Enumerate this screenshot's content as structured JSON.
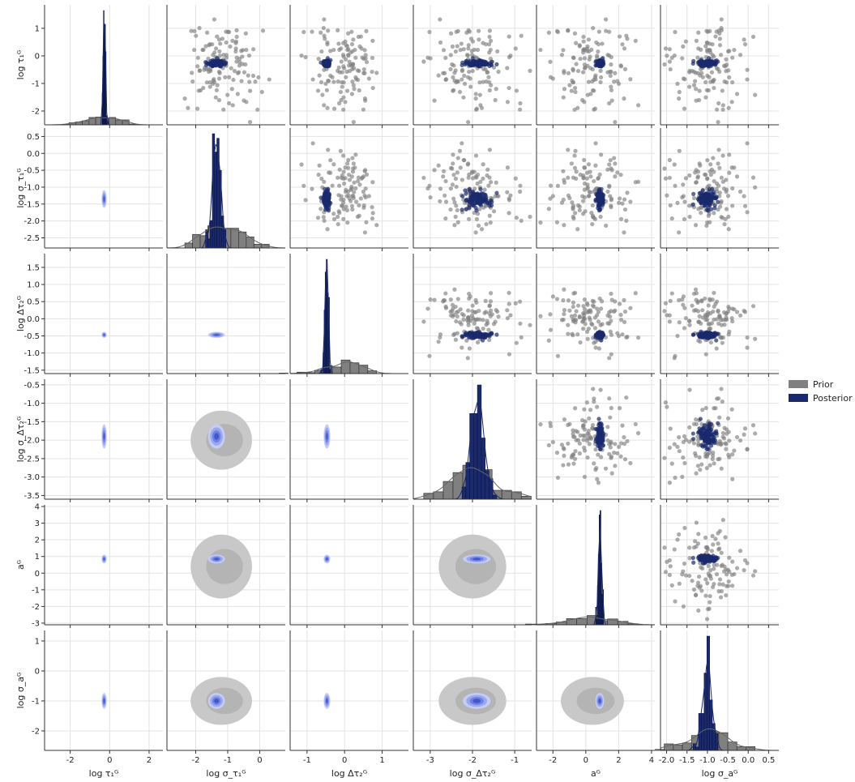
{
  "chart_data": {
    "type": "pairplot",
    "legend": {
      "placement": "right",
      "entries": [
        {
          "name": "Prior",
          "color": "#808080"
        },
        {
          "name": "Posterior",
          "color": "#1a2a6c"
        }
      ]
    },
    "upper_type": "scatter",
    "lower_type": "kde",
    "diag_type": "histogram+kde",
    "grid": true,
    "variables": [
      {
        "label": "log τ₁ᴳ",
        "range": [
          -3.3,
          2.7
        ],
        "prior_mean": -0.3,
        "prior_sd": 0.8,
        "post_mean": -0.28,
        "post_sd": 0.06,
        "ticks": [
          "-2",
          "0",
          "2"
        ],
        "tick_values": [
          -2,
          0,
          2
        ],
        "y_ticks": [
          "-2",
          "-1",
          "0",
          "1"
        ],
        "y_tick_values": [
          -2,
          -1,
          0,
          1
        ],
        "y_range": [
          -2.5,
          1.85
        ]
      },
      {
        "label": "log σ_τ₁ᴳ",
        "range": [
          -2.9,
          0.8
        ],
        "prior_mean": -1.2,
        "prior_sd": 0.6,
        "post_mean": -1.35,
        "post_sd": 0.12,
        "ticks": [
          "-2",
          "-1",
          "0"
        ],
        "tick_values": [
          -2,
          -1,
          0
        ],
        "y_ticks": [
          "-2.5",
          "-2.0",
          "-1.5",
          "-1.0",
          "-0.5",
          "0.0",
          "0.5"
        ],
        "y_tick_values": [
          -2.5,
          -2.0,
          -1.5,
          -1.0,
          -0.5,
          0.0,
          0.5
        ],
        "y_range": [
          -2.8,
          0.75
        ]
      },
      {
        "label": "log Δτ₂ᴳ",
        "range": [
          -1.45,
          1.7
        ],
        "prior_mean": 0.0,
        "prior_sd": 0.5,
        "post_mean": -0.47,
        "post_sd": 0.04,
        "ticks": [
          "-1",
          "0",
          "1"
        ],
        "tick_values": [
          -1,
          0,
          1
        ],
        "y_ticks": [
          "-1.5",
          "-1.0",
          "-0.5",
          "0.0",
          "0.5",
          "1.0",
          "1.5"
        ],
        "y_tick_values": [
          -1.5,
          -1.0,
          -0.5,
          0.0,
          0.5,
          1.0,
          1.5
        ],
        "y_range": [
          -1.6,
          1.9
        ]
      },
      {
        "label": "log σ_Δτ₂ᴳ",
        "range": [
          -3.4,
          -0.6
        ],
        "prior_mean": -2.0,
        "prior_sd": 0.5,
        "post_mean": -1.9,
        "post_sd": 0.15,
        "ticks": [
          "-3",
          "-2",
          "-1"
        ],
        "tick_values": [
          -3,
          -2,
          -1
        ],
        "y_ticks": [
          "-3.5",
          "-3.0",
          "-2.5",
          "-2.0",
          "-1.5",
          "-1.0",
          "-0.5"
        ],
        "y_tick_values": [
          -3.5,
          -3.0,
          -2.5,
          -2.0,
          -1.5,
          -1.0,
          -0.5
        ],
        "y_range": [
          -3.6,
          -0.35
        ]
      },
      {
        "label": "aᴳ",
        "range": [
          -3.0,
          4.2
        ],
        "prior_mean": 0.4,
        "prior_sd": 1.2,
        "post_mean": 0.85,
        "post_sd": 0.12,
        "ticks": [
          "-2",
          "0",
          "2",
          "4"
        ],
        "tick_values": [
          -2,
          0,
          2,
          4
        ],
        "y_ticks": [
          "-3",
          "-2",
          "-1",
          "0",
          "1",
          "2",
          "3",
          "4"
        ],
        "y_tick_values": [
          -3,
          -2,
          -1,
          0,
          1,
          2,
          3,
          4
        ],
        "y_range": [
          -3.1,
          4.1
        ]
      },
      {
        "label": "log σ_aᴳ",
        "range": [
          -2.15,
          0.75
        ],
        "prior_mean": -1.0,
        "prior_sd": 0.5,
        "post_mean": -1.0,
        "post_sd": 0.12,
        "ticks": [
          "-2.0",
          "-1.5",
          "-1.0",
          "-0.5",
          "0.0",
          "0.5"
        ],
        "tick_values": [
          -2.0,
          -1.5,
          -1.0,
          -0.5,
          0.0,
          0.5
        ],
        "y_ticks": [
          "-2",
          "-1",
          "0",
          "1"
        ],
        "y_tick_values": [
          -2,
          -1,
          0,
          1
        ],
        "y_range": [
          -2.65,
          1.35
        ]
      }
    ]
  }
}
